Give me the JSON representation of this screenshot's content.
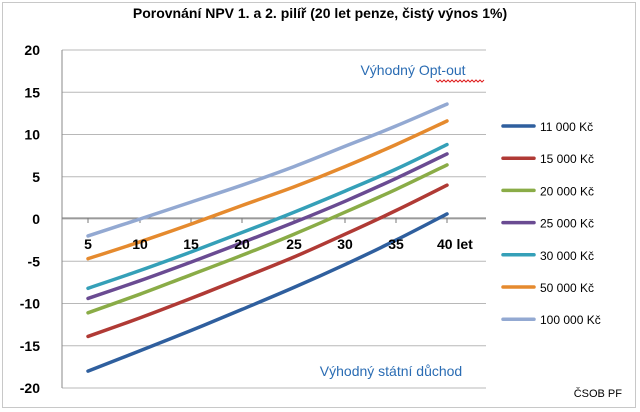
{
  "chart_data": {
    "type": "line",
    "title": "Porovnání NPV 1. a 2. pilíř (20 let penze, čistý výnos 1%)",
    "x": [
      5,
      10,
      15,
      20,
      25,
      30,
      35,
      40
    ],
    "x_tick_labels": [
      "5",
      "10",
      "15",
      "20",
      "25",
      "30",
      "35",
      "40 let"
    ],
    "ylim": [
      -20,
      20
    ],
    "y_ticks": [
      -20,
      -15,
      -10,
      -5,
      0,
      5,
      10,
      15,
      20
    ],
    "grid": true,
    "legend_position": "right",
    "annotations": {
      "top": "Výhodný Opt-out",
      "bottom": "Výhodný státní důchod"
    },
    "series": [
      {
        "name": "11 000 Kč",
        "color": "#2f5f9e",
        "values": [
          -18.0,
          -15.6,
          -13.2,
          -10.7,
          -8.1,
          -5.4,
          -2.5,
          0.6
        ]
      },
      {
        "name": "15 000 Kč",
        "color": "#b03a35",
        "values": [
          -13.9,
          -11.7,
          -9.4,
          -7.0,
          -4.5,
          -1.8,
          1.0,
          4.0
        ]
      },
      {
        "name": "20 000 Kč",
        "color": "#8aac47",
        "values": [
          -11.1,
          -8.9,
          -6.6,
          -4.3,
          -1.8,
          0.8,
          3.5,
          6.4
        ]
      },
      {
        "name": "25 000 Kč",
        "color": "#6a4b92",
        "values": [
          -9.4,
          -7.3,
          -5.1,
          -2.8,
          -0.4,
          2.1,
          4.8,
          7.7
        ]
      },
      {
        "name": "30 000 Kč",
        "color": "#35a0b8",
        "values": [
          -8.2,
          -6.1,
          -3.9,
          -1.6,
          0.8,
          3.3,
          5.9,
          8.8
        ]
      },
      {
        "name": "50 000 Kč",
        "color": "#e58a2e",
        "values": [
          -4.7,
          -2.7,
          -0.6,
          1.6,
          3.8,
          6.2,
          8.8,
          11.6
        ]
      },
      {
        "name": "100 000 Kč",
        "color": "#93a9d2",
        "values": [
          -2.0,
          0.0,
          2.0,
          4.0,
          6.2,
          8.6,
          11.0,
          13.6
        ]
      }
    ]
  },
  "source": "ČSOB PF"
}
